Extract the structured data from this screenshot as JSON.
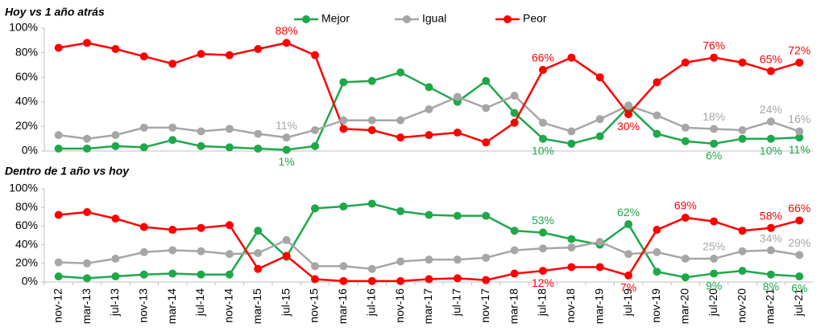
{
  "chart_data": [
    {
      "type": "line",
      "title": "Hoy vs 1 año atrás",
      "legend": "top",
      "show_categories": false,
      "categories": [
        "nov-12",
        "mar-13",
        "jul-13",
        "nov-13",
        "mar-14",
        "jul-14",
        "nov-14",
        "mar-15",
        "jul-15",
        "nov-15",
        "mar-16",
        "jul-16",
        "nov-16",
        "mar-17",
        "jul-17",
        "nov-17",
        "mar-18",
        "jul-18",
        "nov-18",
        "mar-19",
        "jul-19",
        "nov-19",
        "mar-20",
        "jul-20",
        "nov-20",
        "mar-21",
        "jul-21"
      ],
      "ylim": [
        0,
        100
      ],
      "yticks": [
        {
          "value": 0,
          "label": "0%"
        },
        {
          "value": 20,
          "label": "20%"
        },
        {
          "value": 40,
          "label": "40%"
        },
        {
          "value": 60,
          "label": "60%"
        },
        {
          "value": 80,
          "label": "80%"
        },
        {
          "value": 100,
          "label": "100%"
        }
      ],
      "series": [
        {
          "name": "Mejor",
          "color": "#1ea84a",
          "values": [
            2,
            2,
            4,
            3,
            9,
            4,
            3,
            2,
            1,
            4,
            56,
            57,
            64,
            52,
            40,
            57,
            31,
            10,
            6,
            12,
            36,
            14,
            8,
            6,
            10,
            10,
            11
          ],
          "value_labels": [
            null,
            null,
            null,
            null,
            null,
            null,
            null,
            null,
            "1%",
            null,
            null,
            null,
            null,
            null,
            null,
            null,
            null,
            "10%",
            null,
            null,
            null,
            null,
            null,
            "6%",
            null,
            "10%",
            "11%"
          ]
        },
        {
          "name": "Igual",
          "color": "#a6a6a6",
          "values": [
            13,
            10,
            13,
            19,
            19,
            16,
            18,
            14,
            11,
            17,
            25,
            25,
            25,
            34,
            44,
            35,
            45,
            23,
            16,
            26,
            37,
            29,
            19,
            18,
            17,
            24,
            16
          ],
          "value_labels": [
            null,
            null,
            null,
            null,
            null,
            null,
            null,
            null,
            "11%",
            null,
            null,
            null,
            null,
            null,
            null,
            null,
            null,
            null,
            null,
            null,
            null,
            null,
            null,
            "18%",
            null,
            "24%",
            "16%"
          ]
        },
        {
          "name": "Peor",
          "color": "#ff0000",
          "values": [
            84,
            88,
            83,
            77,
            71,
            79,
            78,
            83,
            88,
            78,
            18,
            17,
            11,
            13,
            15,
            7,
            23,
            66,
            76,
            60,
            30,
            56,
            72,
            76,
            72,
            65,
            72
          ],
          "value_labels": [
            null,
            null,
            null,
            null,
            null,
            null,
            null,
            null,
            "88%",
            null,
            null,
            null,
            null,
            null,
            null,
            null,
            null,
            "66%",
            null,
            null,
            "30%",
            null,
            null,
            "76%",
            null,
            "65%",
            "72%"
          ]
        }
      ]
    },
    {
      "type": "line",
      "title": "Dentro de 1 año vs hoy",
      "show_categories": true,
      "categories": [
        "nov-12",
        "mar-13",
        "jul-13",
        "nov-13",
        "mar-14",
        "jul-14",
        "nov-14",
        "mar-15",
        "jul-15",
        "nov-15",
        "mar-16",
        "jul-16",
        "nov-16",
        "mar-17",
        "jul-17",
        "nov-17",
        "mar-18",
        "jul-18",
        "nov-18",
        "mar-19",
        "jul-19",
        "nov-19",
        "mar-20",
        "jul-20",
        "nov-20",
        "mar-21",
        "jul-21"
      ],
      "ylim": [
        0,
        100
      ],
      "yticks": [
        {
          "value": 0,
          "label": "0%"
        },
        {
          "value": 20,
          "label": "20%"
        },
        {
          "value": 40,
          "label": "40%"
        },
        {
          "value": 60,
          "label": "60%"
        },
        {
          "value": 80,
          "label": "80%"
        },
        {
          "value": 100,
          "label": "100%"
        }
      ],
      "series": [
        {
          "name": "Mejor",
          "color": "#1ea84a",
          "values": [
            6,
            4,
            6,
            8,
            9,
            8,
            8,
            55,
            27,
            79,
            81,
            84,
            76,
            72,
            71,
            71,
            55,
            53,
            46,
            40,
            62,
            11,
            5,
            9,
            12,
            8,
            6
          ],
          "value_labels": [
            null,
            null,
            null,
            null,
            null,
            null,
            null,
            null,
            null,
            null,
            null,
            null,
            null,
            null,
            null,
            null,
            null,
            "53%",
            null,
            null,
            "62%",
            null,
            null,
            "9%",
            null,
            "8%",
            "6%"
          ]
        },
        {
          "name": "Igual",
          "color": "#a6a6a6",
          "values": [
            21,
            20,
            25,
            32,
            34,
            33,
            30,
            31,
            45,
            17,
            17,
            14,
            22,
            24,
            24,
            26,
            34,
            36,
            37,
            43,
            30,
            32,
            25,
            25,
            33,
            34,
            29
          ],
          "value_labels": [
            null,
            null,
            null,
            null,
            null,
            null,
            null,
            null,
            null,
            null,
            null,
            null,
            null,
            null,
            null,
            null,
            null,
            null,
            null,
            null,
            null,
            null,
            null,
            "25%",
            null,
            "34%",
            "29%"
          ]
        },
        {
          "name": "Peor",
          "color": "#ff0000",
          "values": [
            72,
            75,
            68,
            59,
            56,
            58,
            61,
            14,
            28,
            3,
            1,
            1,
            1,
            3,
            4,
            2,
            9,
            12,
            16,
            16,
            7,
            56,
            69,
            65,
            55,
            58,
            66
          ],
          "value_labels": [
            null,
            null,
            null,
            null,
            null,
            null,
            null,
            null,
            null,
            null,
            null,
            null,
            null,
            null,
            null,
            null,
            null,
            "12%",
            null,
            null,
            "7%",
            null,
            "69%",
            null,
            null,
            "58%",
            "66%"
          ]
        }
      ]
    }
  ]
}
